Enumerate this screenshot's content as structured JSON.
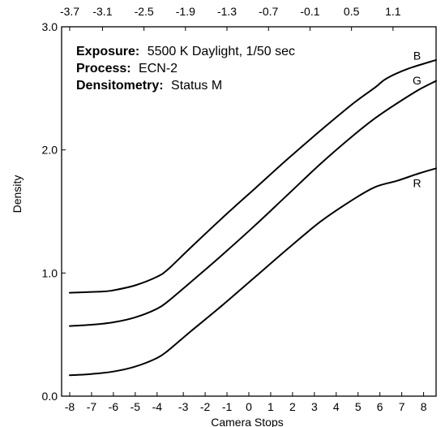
{
  "chart_data": {
    "type": "line",
    "title": "",
    "xlabel": "Camera Stops",
    "ylabel": "Density",
    "xlim": [
      -8,
      8.8
    ],
    "ylim": [
      0,
      3.0
    ],
    "grid": false,
    "legend": "series labels at right end of curves",
    "x_tick_labels": [
      "-8",
      "-7",
      "-6",
      "-5",
      "-4",
      "-3",
      "-2",
      "-1",
      "0",
      "1",
      "2",
      "3",
      "4",
      "5",
      "6",
      "7",
      "8"
    ],
    "x_tick_values": [
      -8,
      -7,
      -6,
      -5,
      -4,
      -2.8,
      -1.8,
      -0.8,
      0.2,
      1.2,
      2.2,
      3.2,
      4.2,
      5.2,
      6.2,
      7.2,
      8.2
    ],
    "y_tick_labels": [
      "0.0",
      "1.0",
      "2.0",
      "3.0"
    ],
    "y_tick_values": [
      0,
      1,
      2,
      3
    ],
    "top_axis_tick_labels": [
      "-3.7",
      "-3.1",
      "-2.5",
      "-1.9",
      "-1.3",
      "-0.7",
      "-0.1",
      "0.5",
      "1.1"
    ],
    "top_axis_tick_values": [
      -8,
      -6.5,
      -4.6,
      -2.7,
      -0.8,
      1.1,
      3.0,
      4.9,
      6.8
    ],
    "annotations": [
      {
        "key": "Exposure:",
        "value": "5500 K Daylight, 1/50 sec"
      },
      {
        "key": "Process:",
        "value": "ECN-2"
      },
      {
        "key": "Densitometry:",
        "value": "Status M"
      }
    ],
    "series": [
      {
        "name": "B",
        "color": "#000000",
        "x": [
          -8,
          -6.5,
          -6,
          -5,
          -4,
          -3.5,
          -2.5,
          -1,
          0.5,
          2,
          3.5,
          5,
          6,
          6.5,
          7.5,
          8.8
        ],
        "y": [
          0.84,
          0.85,
          0.86,
          0.9,
          0.97,
          1.03,
          1.2,
          1.45,
          1.69,
          1.93,
          2.16,
          2.38,
          2.51,
          2.58,
          2.66,
          2.73
        ]
      },
      {
        "name": "G",
        "color": "#000000",
        "x": [
          -8,
          -7,
          -6,
          -5,
          -4,
          -3.5,
          -2.5,
          -1,
          0.5,
          2,
          3.5,
          5,
          6,
          7,
          8,
          8.8
        ],
        "y": [
          0.57,
          0.58,
          0.6,
          0.64,
          0.71,
          0.77,
          0.92,
          1.15,
          1.39,
          1.64,
          1.89,
          2.12,
          2.26,
          2.38,
          2.49,
          2.56
        ]
      },
      {
        "name": "R",
        "color": "#000000",
        "x": [
          -8,
          -7,
          -6,
          -5,
          -4,
          -3.5,
          -2.5,
          -1,
          0.5,
          2,
          3.5,
          5,
          6,
          7,
          8,
          8.8
        ],
        "y": [
          0.17,
          0.18,
          0.2,
          0.24,
          0.31,
          0.37,
          0.52,
          0.74,
          0.97,
          1.2,
          1.42,
          1.6,
          1.7,
          1.75,
          1.81,
          1.85
        ]
      }
    ]
  }
}
